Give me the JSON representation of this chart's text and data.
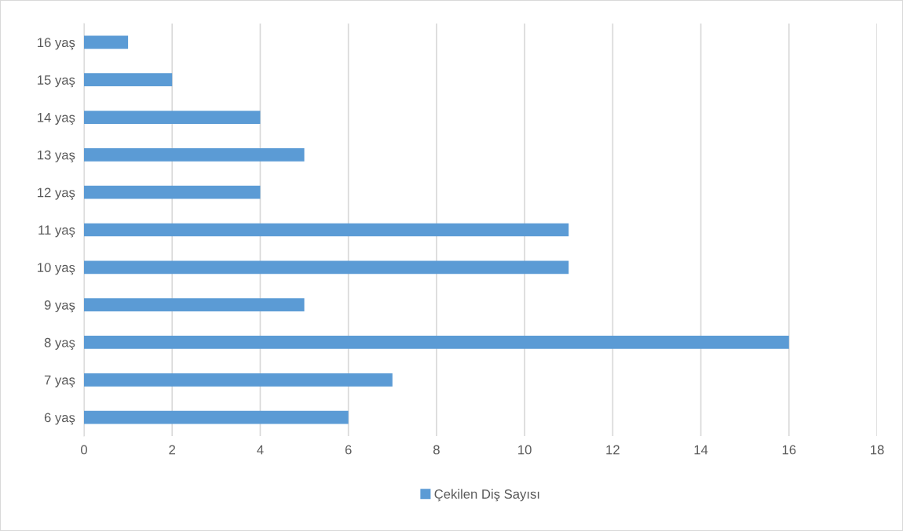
{
  "chart_data": {
    "type": "bar",
    "orientation": "horizontal",
    "categories": [
      "16 yaş",
      "15 yaş",
      "14 yaş",
      "13 yaş",
      "12 yaş",
      "11 yaş",
      "10 yaş",
      "9 yaş",
      "8 yaş",
      "7 yaş",
      "6 yaş"
    ],
    "series": [
      {
        "name": "Çekilen Diş Sayısı",
        "color": "#5b9bd5",
        "values": [
          1,
          2,
          4,
          5,
          4,
          11,
          11,
          5,
          16,
          7,
          6
        ]
      }
    ],
    "xlim": [
      0,
      18
    ],
    "xticks": [
      0,
      2,
      4,
      6,
      8,
      10,
      12,
      14,
      16,
      18
    ],
    "grid": "x",
    "legend": "bottom"
  }
}
